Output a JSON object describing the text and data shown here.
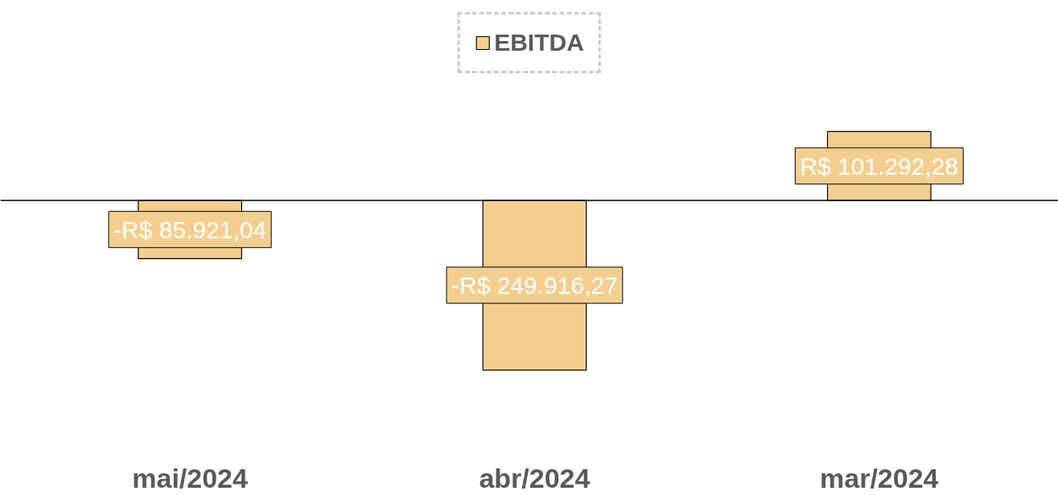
{
  "chart_data": {
    "type": "bar",
    "categories": [
      "mai/2024",
      "abr/2024",
      "mar/2024"
    ],
    "series": [
      {
        "name": "EBITDA",
        "color": "#f2cf91",
        "values": [
          -85921.04,
          -249916.27,
          101292.28
        ],
        "value_labels": [
          "-R$ 85.921,04",
          "-R$ 249.916,27",
          "R$ 101.292,28"
        ]
      }
    ],
    "data_labels": true,
    "legend": "top",
    "grid": false
  }
}
